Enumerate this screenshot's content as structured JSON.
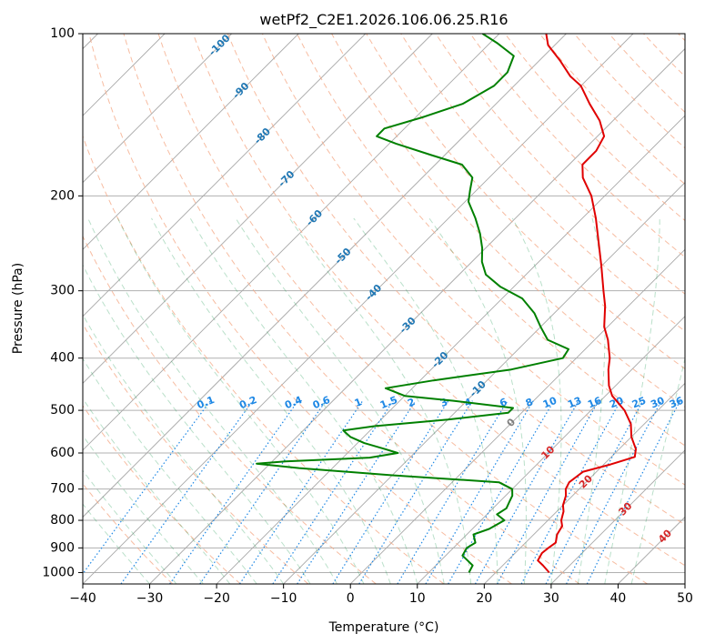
{
  "chart_data": {
    "type": "line",
    "title": "wetPf2_C2E1.2026.106.06.25.R16",
    "xlabel": "Temperature (°C)",
    "ylabel": "Pressure (hPa)",
    "xlim": [
      -40,
      50
    ],
    "ylim": [
      1050,
      100
    ],
    "y_scale": "log",
    "x_ticks": [
      -40,
      -30,
      -20,
      -10,
      0,
      10,
      20,
      30,
      40,
      50
    ],
    "y_ticks": [
      1000,
      900,
      800,
      700,
      600,
      500,
      400,
      300,
      200,
      100
    ],
    "grid": true,
    "skew": true,
    "isotherm_labels": [
      "-100",
      "-90",
      "-80",
      "-70",
      "-60",
      "-50",
      "-40",
      "-30",
      "-20",
      "-10",
      "0",
      "10",
      "20",
      "30",
      "40"
    ],
    "mixing_ratio_labels": [
      "0.1",
      "0.2",
      "0.4",
      "0.6",
      "1",
      "1.5",
      "2",
      "3",
      "4",
      "6",
      "8",
      "10",
      "13",
      "16",
      "20",
      "25",
      "30",
      "36"
    ],
    "series": [],
    "temperature_profile": {
      "color": "#e00000",
      "points": [
        [
          1000,
          28.0
        ],
        [
          970,
          26.0
        ],
        [
          950,
          24.5
        ],
        [
          920,
          24.0
        ],
        [
          900,
          24.2
        ],
        [
          880,
          24.5
        ],
        [
          850,
          23.5
        ],
        [
          820,
          23.0
        ],
        [
          800,
          22.0
        ],
        [
          770,
          21.0
        ],
        [
          750,
          20.0
        ],
        [
          720,
          19.0
        ],
        [
          700,
          18.0
        ],
        [
          680,
          17.5
        ],
        [
          650,
          18.0
        ],
        [
          630,
          21.0
        ],
        [
          610,
          23.5
        ],
        [
          590,
          22.5
        ],
        [
          560,
          20.0
        ],
        [
          530,
          18.0
        ],
        [
          500,
          15.0
        ],
        [
          470,
          11.0
        ],
        [
          450,
          9.0
        ],
        [
          420,
          6.5
        ],
        [
          400,
          5.0
        ],
        [
          370,
          2.0
        ],
        [
          350,
          -0.5
        ],
        [
          320,
          -3.5
        ],
        [
          300,
          -6.0
        ],
        [
          270,
          -10.0
        ],
        [
          250,
          -13.0
        ],
        [
          220,
          -18.0
        ],
        [
          200,
          -22.0
        ],
        [
          185,
          -26.0
        ],
        [
          175,
          -28.0
        ],
        [
          165,
          -28.0
        ],
        [
          155,
          -29.0
        ],
        [
          145,
          -32.0
        ],
        [
          135,
          -36.0
        ],
        [
          125,
          -40.0
        ],
        [
          120,
          -43.0
        ],
        [
          112,
          -47.0
        ],
        [
          105,
          -51.0
        ],
        [
          100,
          -53.0
        ]
      ]
    },
    "dewpoint_profile": {
      "color": "#008000",
      "points": [
        [
          1000,
          16.0
        ],
        [
          970,
          15.5
        ],
        [
          950,
          14.0
        ],
        [
          930,
          12.5
        ],
        [
          900,
          12.0
        ],
        [
          880,
          12.5
        ],
        [
          850,
          11.0
        ],
        [
          830,
          12.5
        ],
        [
          800,
          13.5
        ],
        [
          780,
          11.5
        ],
        [
          760,
          12.0
        ],
        [
          740,
          11.5
        ],
        [
          720,
          11.0
        ],
        [
          700,
          10.0
        ],
        [
          680,
          7.0
        ],
        [
          660,
          -10.0
        ],
        [
          640,
          -25.0
        ],
        [
          628,
          -32.0
        ],
        [
          622,
          -28.0
        ],
        [
          612,
          -16.0
        ],
        [
          600,
          -12.5
        ],
        [
          590,
          -15.0
        ],
        [
          575,
          -19.0
        ],
        [
          560,
          -22.0
        ],
        [
          545,
          -24.0
        ],
        [
          535,
          -20.0
        ],
        [
          520,
          -10.0
        ],
        [
          505,
          -2.0
        ],
        [
          495,
          -2.0
        ],
        [
          480,
          -12.0
        ],
        [
          470,
          -20.0
        ],
        [
          455,
          -24.0
        ],
        [
          440,
          -18.0
        ],
        [
          420,
          -8.0
        ],
        [
          400,
          -2.0
        ],
        [
          385,
          -2.5
        ],
        [
          370,
          -7.0
        ],
        [
          350,
          -10.0
        ],
        [
          330,
          -13.0
        ],
        [
          310,
          -17.0
        ],
        [
          295,
          -22.0
        ],
        [
          280,
          -26.0
        ],
        [
          265,
          -28.5
        ],
        [
          250,
          -30.5
        ],
        [
          235,
          -33.0
        ],
        [
          220,
          -36.0
        ],
        [
          205,
          -39.5
        ],
        [
          195,
          -41.0
        ],
        [
          185,
          -42.5
        ],
        [
          175,
          -46.0
        ],
        [
          168,
          -52.0
        ],
        [
          160,
          -59.0
        ],
        [
          155,
          -63.0
        ],
        [
          150,
          -63.0
        ],
        [
          143,
          -59.0
        ],
        [
          135,
          -55.0
        ],
        [
          125,
          -53.0
        ],
        [
          118,
          -53.0
        ],
        [
          110,
          -54.5
        ],
        [
          104,
          -59.0
        ],
        [
          100,
          -62.5
        ]
      ]
    }
  }
}
